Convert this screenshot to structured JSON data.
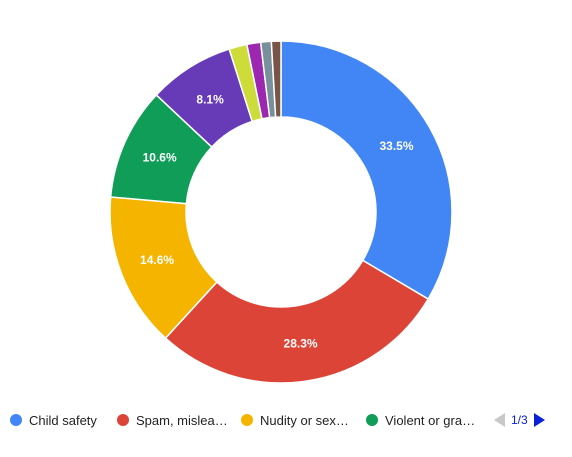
{
  "chart_data": {
    "type": "pie",
    "donut": true,
    "slices": [
      {
        "name": "Child safety",
        "value": 33.5,
        "label": "33.5%",
        "color": "#4285f4"
      },
      {
        "name": "Spam, mislea…",
        "value": 28.3,
        "label": "28.3%",
        "color": "#db4437"
      },
      {
        "name": "Nudity or sex…",
        "value": 14.6,
        "label": "14.6%",
        "color": "#f4b400"
      },
      {
        "name": "Violent or gra…",
        "value": 10.6,
        "label": "10.6%",
        "color": "#0f9d58"
      },
      {
        "value": 8.1,
        "label": "8.1%",
        "color": "#673ab7"
      },
      {
        "value": 1.7,
        "label": "",
        "color": "#cddc39"
      },
      {
        "value": 1.3,
        "label": "",
        "color": "#9c27b0"
      },
      {
        "value": 1.0,
        "label": "",
        "color": "#78909c"
      },
      {
        "value": 0.9,
        "label": "",
        "color": "#795548"
      }
    ],
    "legend_position": "bottom"
  },
  "legend": {
    "items": [
      {
        "label": "Child safety",
        "color": "#4285f4"
      },
      {
        "label": "Spam, mislea…",
        "color": "#db4437"
      },
      {
        "label": "Nudity or sex…",
        "color": "#f4b400"
      },
      {
        "label": "Violent or gra…",
        "color": "#0f9d58"
      }
    ],
    "pager": {
      "text": "1/3"
    }
  }
}
